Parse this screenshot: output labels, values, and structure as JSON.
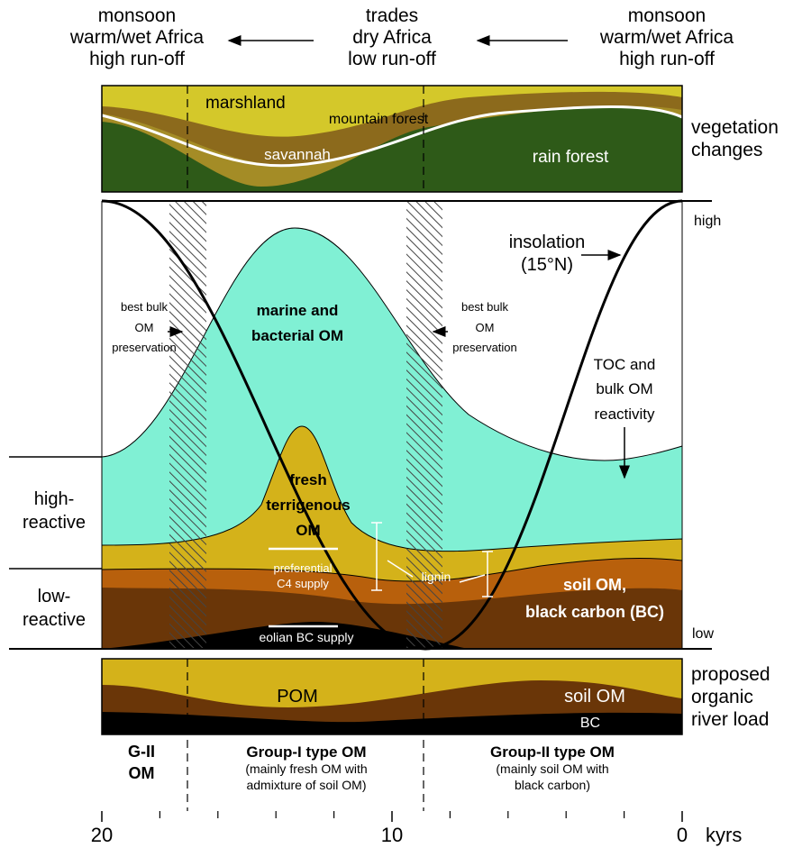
{
  "header": {
    "left": [
      "monsoon",
      "warm/wet Africa",
      "high run-off"
    ],
    "center": [
      "trades",
      "dry Africa",
      "low run-off"
    ],
    "right": [
      "monsoon",
      "warm/wet Africa",
      "high run-off"
    ]
  },
  "vegetation": {
    "marshland": "marshland",
    "mountain_forest": "mountain forest",
    "savannah": "savannah",
    "rain_forest": "rain forest",
    "side_label": [
      "vegetation",
      "changes"
    ]
  },
  "main": {
    "high": "high",
    "low": "low",
    "insolation": [
      "insolation",
      "(15°N)"
    ],
    "preservation_left": [
      "best bulk",
      "OM",
      "preservation"
    ],
    "preservation_right": [
      "best bulk",
      "OM",
      "preservation"
    ],
    "marine": [
      "marine and",
      "bacterial OM"
    ],
    "toc": [
      "TOC and",
      "bulk OM",
      "reactivity"
    ],
    "fresh": [
      "fresh",
      "terrigenous",
      "OM"
    ],
    "c4": [
      "preferential",
      "C4 supply"
    ],
    "lignin": "lignin",
    "soil": [
      "soil OM,",
      "black carbon (BC)"
    ],
    "eolian": "eolian BC supply",
    "high_reactive": [
      "high-",
      "reactive"
    ],
    "low_reactive": [
      "low-",
      "reactive"
    ]
  },
  "river": {
    "pom": "POM",
    "soil": "soil OM",
    "bc": "BC",
    "side_label": [
      "proposed",
      "organic",
      "river load"
    ]
  },
  "groups": {
    "g2_short": [
      "G-II",
      "OM"
    ],
    "group1": {
      "title": "Group-I type OM",
      "note": [
        "(mainly fresh OM with",
        "admixture of soil OM)"
      ]
    },
    "group2": {
      "title": "Group-II type OM",
      "note": [
        "(mainly soil OM with",
        "black carbon)"
      ]
    }
  },
  "axis": {
    "ticks": [
      20,
      10,
      0
    ],
    "minor_ticks": [
      18,
      16,
      14,
      12,
      8,
      6,
      4,
      2
    ],
    "unit": "kyrs"
  }
}
